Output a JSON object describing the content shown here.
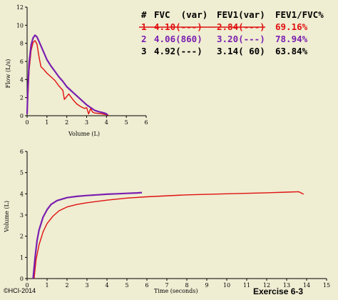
{
  "colors": {
    "background": "#efedd2",
    "trial1": "#e01010",
    "trial2": "#7a1fb0",
    "trial3": "#000000"
  },
  "table": {
    "headers": [
      "#",
      "FVC  (var)",
      "FEV1(var)",
      "FEV1/FVC%"
    ],
    "rows": [
      {
        "num": "1",
        "fvc": "4.10(---)",
        "fev1": "2.84(---)",
        "ratio": "69.16%",
        "color": "#e01010",
        "struck": true
      },
      {
        "num": "2",
        "fvc": "4.06(860)",
        "fev1": "3.20(---)",
        "ratio": "78.94%",
        "color": "#7a1fb0",
        "struck": false
      },
      {
        "num": "3",
        "fvc": "4.92(---)",
        "fev1": "3.14( 60)",
        "ratio": "63.84%",
        "color": "#000000",
        "struck": false
      }
    ]
  },
  "footer": {
    "copyright": "©HCI-2014",
    "exercise": "Exercise 6-3"
  },
  "chart_data": [
    {
      "type": "line",
      "xlabel": "Volume (L)",
      "ylabel": "Flow (L/s)",
      "xlim": [
        0,
        6
      ],
      "ylim": [
        0,
        12
      ],
      "xticks": [
        0,
        1,
        2,
        3,
        4,
        5,
        6
      ],
      "yticks": [
        0,
        2,
        4,
        6,
        8,
        10,
        12
      ],
      "series": [
        {
          "color": "#e01010",
          "x": [
            0.0,
            0.04,
            0.1,
            0.2,
            0.3,
            0.4,
            0.5,
            0.6,
            0.7,
            0.8,
            1.0,
            1.2,
            1.4,
            1.6,
            1.8,
            1.88,
            1.95,
            2.1,
            2.3,
            2.5,
            2.7,
            2.9,
            3.0,
            3.1,
            3.2,
            3.3,
            3.4,
            3.6,
            3.8,
            4.0,
            4.1
          ],
          "y": [
            0.2,
            2.0,
            5.0,
            7.2,
            8.1,
            8.3,
            7.9,
            6.5,
            5.4,
            5.2,
            4.7,
            4.3,
            3.9,
            3.3,
            2.8,
            1.8,
            2.0,
            2.4,
            1.8,
            1.3,
            1.0,
            0.8,
            0.9,
            0.2,
            0.8,
            0.4,
            0.3,
            0.25,
            0.2,
            0.12,
            0.05
          ]
        },
        {
          "color": "#7a1fb0",
          "x": [
            0.0,
            0.04,
            0.1,
            0.2,
            0.3,
            0.4,
            0.5,
            0.6,
            0.8,
            1.0,
            1.2,
            1.4,
            1.6,
            1.8,
            2.0,
            2.2,
            2.4,
            2.6,
            2.8,
            3.0,
            3.2,
            3.4,
            3.6,
            3.8,
            3.95,
            4.06
          ],
          "y": [
            0.2,
            3.0,
            5.8,
            7.8,
            8.6,
            8.9,
            8.7,
            8.2,
            7.2,
            6.2,
            5.5,
            4.9,
            4.3,
            3.8,
            3.2,
            2.8,
            2.4,
            2.0,
            1.6,
            1.2,
            0.9,
            0.6,
            0.45,
            0.35,
            0.25,
            0.1
          ]
        }
      ]
    },
    {
      "type": "line",
      "xlabel": "Time (seconds)",
      "ylabel": "Volume (L)",
      "xlim": [
        0,
        15
      ],
      "ylim": [
        0,
        6
      ],
      "xticks": [
        0,
        1,
        2,
        3,
        4,
        5,
        6,
        7,
        8,
        9,
        10,
        11,
        12,
        13,
        14,
        15
      ],
      "yticks": [
        0,
        1,
        2,
        3,
        4,
        5,
        6
      ],
      "series": [
        {
          "color": "#e01010",
          "x": [
            0.35,
            0.45,
            0.6,
            0.8,
            1.0,
            1.3,
            1.6,
            2.0,
            2.5,
            3.0,
            4.0,
            5.0,
            6.0,
            8.0,
            10.0,
            12.0,
            13.0,
            13.6,
            13.85
          ],
          "y": [
            0.0,
            0.9,
            1.6,
            2.2,
            2.6,
            2.95,
            3.2,
            3.38,
            3.5,
            3.58,
            3.7,
            3.8,
            3.86,
            3.95,
            4.0,
            4.05,
            4.08,
            4.1,
            3.98
          ]
        },
        {
          "color": "#7a1fb0",
          "x": [
            0.3,
            0.4,
            0.5,
            0.6,
            0.8,
            1.0,
            1.2,
            1.5,
            2.0,
            2.5,
            3.0,
            3.5,
            4.0,
            4.5,
            5.0,
            5.5,
            5.75
          ],
          "y": [
            0.0,
            1.0,
            1.8,
            2.3,
            2.9,
            3.25,
            3.5,
            3.68,
            3.82,
            3.88,
            3.92,
            3.95,
            3.98,
            4.0,
            4.02,
            4.04,
            4.06
          ]
        }
      ]
    }
  ]
}
